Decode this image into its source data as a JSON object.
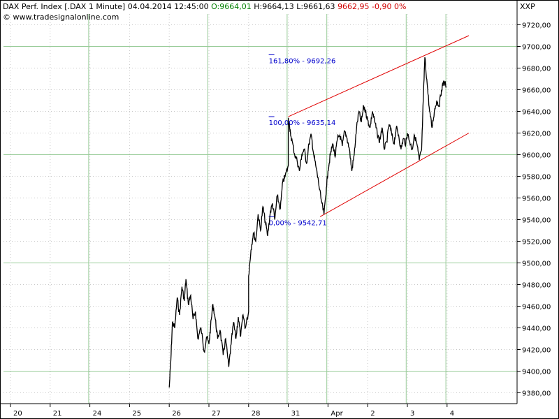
{
  "header": {
    "instrument": "DAX Perf. Index [.DAX  1 Minute]",
    "datetime": "04.04.2014 12:45:00",
    "open": "O:9664,01",
    "high": "H:9664,13",
    "low": "L:9661,63",
    "close": "9662,95",
    "change": "-0,90",
    "change_pct": "0%",
    "watermark": "© www.tradesignalonline.com",
    "symbol_code": "XXP"
  },
  "colors": {
    "price": "#000000",
    "channel": "#e00000",
    "fib": "#0000cc",
    "grid": "#99cc99",
    "grid_dotted": "#c8c8c8",
    "open_value": "#008000",
    "negative": "#d00000"
  },
  "chart_data": {
    "type": "line",
    "title": "",
    "xlabel": "",
    "ylabel": "",
    "ylim": [
      9370,
      9730
    ],
    "grid": true,
    "y_ticks": [
      9380,
      9400,
      9420,
      9440,
      9460,
      9480,
      9500,
      9520,
      9540,
      9560,
      9580,
      9600,
      9620,
      9640,
      9660,
      9680,
      9700,
      9720
    ],
    "y_tick_labels": [
      "9380,00",
      "9400,00",
      "9420,00",
      "9440,00",
      "9460,00",
      "9480,00",
      "9500,00",
      "9520,00",
      "9540,00",
      "9560,00",
      "9580,00",
      "9600,00",
      "9620,00",
      "9640,00",
      "9660,00",
      "9680,00",
      "9700,00",
      "9720,00"
    ],
    "x_ticks": [
      {
        "label": "20",
        "session": 0
      },
      {
        "label": "21",
        "session": 1
      },
      {
        "label": "24",
        "session": 2
      },
      {
        "label": "25",
        "session": 3
      },
      {
        "label": "26",
        "session": 4
      },
      {
        "label": "27",
        "session": 5
      },
      {
        "label": "28",
        "session": 6
      },
      {
        "label": "31",
        "session": 7
      },
      {
        "label": "Apr",
        "session": 8
      },
      {
        "label": "2",
        "session": 9
      },
      {
        "label": "3",
        "session": 10
      },
      {
        "label": "4",
        "session": 11
      }
    ],
    "series": [
      {
        "points": [
          [
            4.0,
            9385
          ],
          [
            4.04,
            9410
          ],
          [
            4.08,
            9445
          ],
          [
            4.14,
            9440
          ],
          [
            4.2,
            9468
          ],
          [
            4.26,
            9452
          ],
          [
            4.32,
            9478
          ],
          [
            4.38,
            9465
          ],
          [
            4.42,
            9485
          ],
          [
            4.48,
            9462
          ],
          [
            4.54,
            9470
          ],
          [
            4.6,
            9448
          ],
          [
            4.66,
            9455
          ],
          [
            4.72,
            9430
          ],
          [
            4.8,
            9440
          ],
          [
            4.88,
            9418
          ],
          [
            4.94,
            9432
          ],
          [
            5.0,
            9425
          ],
          [
            5.04,
            9440
          ],
          [
            5.1,
            9462
          ],
          [
            5.16,
            9448
          ],
          [
            5.22,
            9430
          ],
          [
            5.28,
            9438
          ],
          [
            5.36,
            9415
          ],
          [
            5.42,
            9430
          ],
          [
            5.5,
            9404
          ],
          [
            5.56,
            9425
          ],
          [
            5.62,
            9445
          ],
          [
            5.68,
            9430
          ],
          [
            5.74,
            9450
          ],
          [
            5.8,
            9432
          ],
          [
            5.86,
            9452
          ],
          [
            5.92,
            9440
          ],
          [
            6.0,
            9455
          ],
          [
            6.0,
            9488
          ],
          [
            6.06,
            9512
          ],
          [
            6.12,
            9528
          ],
          [
            6.18,
            9520
          ],
          [
            6.24,
            9545
          ],
          [
            6.3,
            9530
          ],
          [
            6.36,
            9552
          ],
          [
            6.42,
            9538
          ],
          [
            6.48,
            9525
          ],
          [
            6.54,
            9545
          ],
          [
            6.6,
            9555
          ],
          [
            6.66,
            9540
          ],
          [
            6.72,
            9562
          ],
          [
            6.8,
            9550
          ],
          [
            6.86,
            9575
          ],
          [
            6.92,
            9580
          ],
          [
            7.0,
            9590
          ],
          [
            7.0,
            9634
          ],
          [
            7.04,
            9622
          ],
          [
            7.1,
            9612
          ],
          [
            7.16,
            9600
          ],
          [
            7.22,
            9595
          ],
          [
            7.28,
            9585
          ],
          [
            7.34,
            9600
          ],
          [
            7.4,
            9605
          ],
          [
            7.46,
            9592
          ],
          [
            7.52,
            9610
          ],
          [
            7.58,
            9618
          ],
          [
            7.64,
            9600
          ],
          [
            7.7,
            9588
          ],
          [
            7.76,
            9575
          ],
          [
            7.82,
            9560
          ],
          [
            7.9,
            9545
          ],
          [
            7.96,
            9570
          ],
          [
            8.0,
            9585
          ],
          [
            8.06,
            9600
          ],
          [
            8.12,
            9610
          ],
          [
            8.18,
            9598
          ],
          [
            8.24,
            9615
          ],
          [
            8.3,
            9618
          ],
          [
            8.36,
            9608
          ],
          [
            8.42,
            9622
          ],
          [
            8.48,
            9615
          ],
          [
            8.54,
            9605
          ],
          [
            8.6,
            9585
          ],
          [
            8.66,
            9600
          ],
          [
            8.72,
            9625
          ],
          [
            8.78,
            9640
          ],
          [
            8.84,
            9630
          ],
          [
            8.9,
            9645
          ],
          [
            8.96,
            9638
          ],
          [
            9.0,
            9632
          ],
          [
            9.06,
            9625
          ],
          [
            9.12,
            9640
          ],
          [
            9.18,
            9630
          ],
          [
            9.24,
            9620
          ],
          [
            9.3,
            9612
          ],
          [
            9.36,
            9625
          ],
          [
            9.42,
            9605
          ],
          [
            9.48,
            9612
          ],
          [
            9.54,
            9628
          ],
          [
            9.6,
            9620
          ],
          [
            9.66,
            9610
          ],
          [
            9.72,
            9625
          ],
          [
            9.78,
            9618
          ],
          [
            9.84,
            9605
          ],
          [
            9.9,
            9615
          ],
          [
            9.96,
            9610
          ],
          [
            10.0,
            9620
          ],
          [
            10.06,
            9612
          ],
          [
            10.12,
            9605
          ],
          [
            10.18,
            9618
          ],
          [
            10.24,
            9610
          ],
          [
            10.3,
            9595
          ],
          [
            10.36,
            9605
          ],
          [
            10.4,
            9650
          ],
          [
            10.44,
            9690
          ],
          [
            10.5,
            9665
          ],
          [
            10.56,
            9640
          ],
          [
            10.62,
            9625
          ],
          [
            10.68,
            9640
          ],
          [
            10.74,
            9650
          ],
          [
            10.8,
            9645
          ],
          [
            10.86,
            9660
          ],
          [
            10.92,
            9668
          ],
          [
            10.98,
            9663
          ]
        ]
      }
    ],
    "channel_lines": [
      {
        "x1": 7.0,
        "y1": 9635.14,
        "x2": 11.55,
        "y2": 9710
      },
      {
        "x1": 7.8,
        "y1": 9542.71,
        "x2": 11.55,
        "y2": 9620
      }
    ],
    "fib_levels": [
      {
        "label": "161,80% - 9692,26",
        "value": 9692.26
      },
      {
        "label": "100,00% - 9635,14",
        "value": 9635.14
      },
      {
        "label": "0,00% - 9542,71",
        "value": 9542.71
      }
    ],
    "fib_x_start": 7.0
  }
}
